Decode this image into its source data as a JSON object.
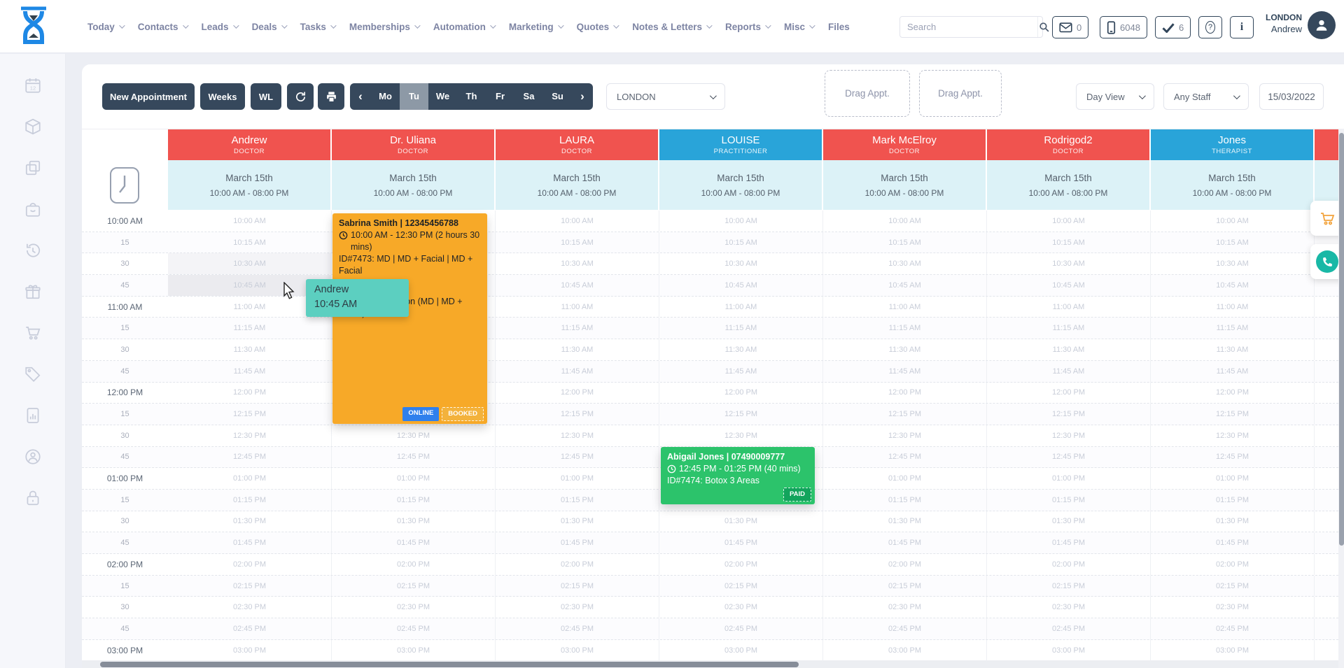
{
  "topbar": {
    "menu": [
      {
        "label": "Today",
        "dropdown": true
      },
      {
        "label": "Contacts",
        "dropdown": true
      },
      {
        "label": "Leads",
        "dropdown": true
      },
      {
        "label": "Deals",
        "dropdown": true
      },
      {
        "label": "Tasks",
        "dropdown": true
      },
      {
        "label": "Memberships",
        "dropdown": true
      },
      {
        "label": "Automation",
        "dropdown": true
      },
      {
        "label": "Marketing",
        "dropdown": true
      },
      {
        "label": "Quotes",
        "dropdown": true
      },
      {
        "label": "Notes & Letters",
        "dropdown": true
      },
      {
        "label": "Reports",
        "dropdown": true
      },
      {
        "label": "Misc",
        "dropdown": true
      },
      {
        "label": "Files",
        "dropdown": false
      }
    ],
    "search_placeholder": "Search",
    "mail_count": "0",
    "sms_count": "6048",
    "task_count": "6",
    "location": "LONDON",
    "user_name": "Andrew"
  },
  "sidebar": {
    "icons": [
      "calendar-icon",
      "stock-icon",
      "rooms-icon",
      "pos-icon",
      "history-icon",
      "gift-icon",
      "cart-icon",
      "tag-icon",
      "report-icon",
      "account-sync-icon",
      "lock-icon"
    ]
  },
  "toolbar": {
    "new_appointment_label": "New Appointment",
    "weeks_label": "Weeks",
    "wl_label": "WL",
    "days": [
      "Mo",
      "Tu",
      "We",
      "Th",
      "Fr",
      "Sa",
      "Su"
    ],
    "active_day": "Tu",
    "location_select": "LONDON",
    "drag_slot_1": "Drag Appt.",
    "drag_slot_2": "Drag Appt.",
    "view_select": "Day View",
    "staff_select": "Any Staff",
    "date_value": "15/03/2022"
  },
  "calendar": {
    "columns": [
      {
        "name": "Andrew",
        "role": "DOCTOR",
        "type": "doctor"
      },
      {
        "name": "Dr. Uliana",
        "role": "DOCTOR",
        "type": "doctor"
      },
      {
        "name": "LAURA",
        "role": "DOCTOR",
        "type": "doctor"
      },
      {
        "name": "LOUISE",
        "role": "PRACTITIONER",
        "type": "practitioner"
      },
      {
        "name": "Mark McElroy",
        "role": "DOCTOR",
        "type": "doctor"
      },
      {
        "name": "Rodrigod2",
        "role": "DOCTOR",
        "type": "doctor"
      },
      {
        "name": "Jones",
        "role": "THERAPIST",
        "type": "practitioner"
      }
    ],
    "column_date": "March 15th",
    "column_hours": "10:00 AM - 08:00 PM",
    "times": [
      {
        "gutter": "10:00 AM",
        "cell": "10:00 AM",
        "hour": true
      },
      {
        "gutter": "15",
        "cell": "10:15 AM",
        "hour": false
      },
      {
        "gutter": "30",
        "cell": "10:30 AM",
        "hour": false
      },
      {
        "gutter": "45",
        "cell": "10:45 AM",
        "hour": false
      },
      {
        "gutter": "11:00 AM",
        "cell": "11:00 AM",
        "hour": true
      },
      {
        "gutter": "15",
        "cell": "11:15 AM",
        "hour": false
      },
      {
        "gutter": "30",
        "cell": "11:30 AM",
        "hour": false
      },
      {
        "gutter": "45",
        "cell": "11:45 AM",
        "hour": false
      },
      {
        "gutter": "12:00 PM",
        "cell": "12:00 PM",
        "hour": true
      },
      {
        "gutter": "15",
        "cell": "12:15 PM",
        "hour": false
      },
      {
        "gutter": "30",
        "cell": "12:30 PM",
        "hour": false
      },
      {
        "gutter": "45",
        "cell": "12:45 PM",
        "hour": false
      },
      {
        "gutter": "01:00 PM",
        "cell": "01:00 PM",
        "hour": true
      },
      {
        "gutter": "15",
        "cell": "01:15 PM",
        "hour": false
      },
      {
        "gutter": "30",
        "cell": "01:30 PM",
        "hour": false
      },
      {
        "gutter": "45",
        "cell": "01:45 PM",
        "hour": false
      },
      {
        "gutter": "02:00 PM",
        "cell": "02:00 PM",
        "hour": true
      },
      {
        "gutter": "15",
        "cell": "02:15 PM",
        "hour": false
      },
      {
        "gutter": "30",
        "cell": "02:30 PM",
        "hour": false
      },
      {
        "gutter": "45",
        "cell": "02:45 PM",
        "hour": false
      },
      {
        "gutter": "03:00 PM",
        "cell": "03:00 PM",
        "hour": true
      }
    ],
    "appointments": [
      {
        "client": "Sabrina Smith | 12345456788",
        "time": "10:00 AM - 12:30 PM (2 hours 30 mins)",
        "service": "ID#7473: MD | MD + Facial | MD + Facial",
        "note": "Online Consultation (MD | MD + Facial)",
        "badge_1": "ONLINE",
        "badge_2": "BOOKED"
      },
      {
        "client": "Abigail Jones | 07490009777",
        "time": "12:45 PM - 01:25 PM (40 mins)",
        "service": "ID#7474: Botox 3 Areas",
        "badge_1": "PAID"
      }
    ],
    "tooltip": {
      "staff": "Andrew",
      "time": "10:45 AM"
    }
  },
  "colors": {
    "doctor_header": "#f0534f",
    "practitioner_header": "#29a4d9",
    "appointment_orange": "#f7a928",
    "appointment_green": "#2cc36b",
    "tooltip_teal": "#5ccfc0",
    "badge_online": "#2f80ed",
    "badge_booked": "#f3b23c",
    "badge_paid": "#12a45c",
    "dark_button": "#36485c"
  }
}
